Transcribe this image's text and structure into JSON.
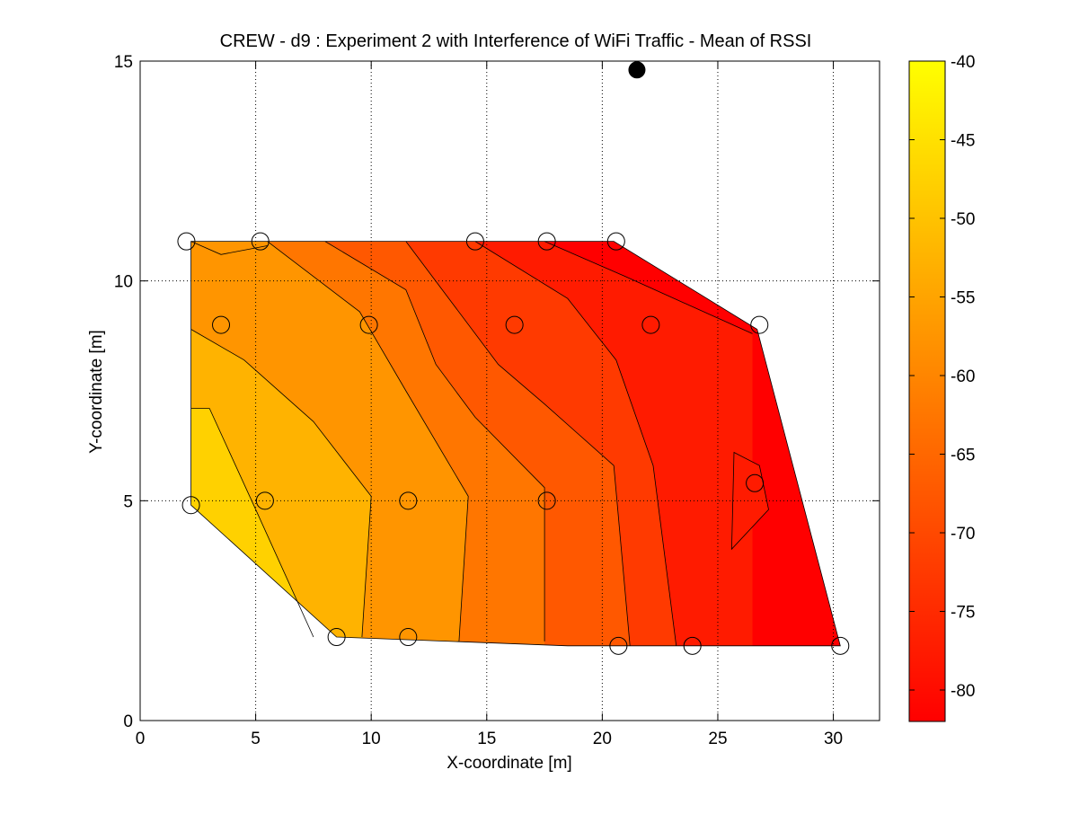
{
  "chart_data": {
    "type": "heatmap",
    "subtype": "filled-contour",
    "title": "CREW - d9 : Experiment 2 with Interference of WiFi Traffic - Mean of RSSI",
    "xlabel": "X-coordinate [m]",
    "ylabel": "Y-coordinate [m]",
    "xlim": [
      0,
      32
    ],
    "ylim": [
      0,
      15
    ],
    "xticks": [
      "0",
      "5",
      "10",
      "15",
      "20",
      "25",
      "30"
    ],
    "yticks": [
      "0",
      "5",
      "10",
      "15"
    ],
    "grid": true,
    "colormap": "autumn-reversed",
    "colors": {
      "low": "#ff0000",
      "high": "#ffff00"
    },
    "colorbar": {
      "range": [
        -82,
        -40
      ],
      "ticks": [
        "-40",
        "-45",
        "-50",
        "-55",
        "-60",
        "-65",
        "-70",
        "-75",
        "-80"
      ]
    },
    "region": [
      [
        2.2,
        10.9
      ],
      [
        20.5,
        10.9
      ],
      [
        26.7,
        8.9
      ],
      [
        30.3,
        1.7
      ],
      [
        18.5,
        1.7
      ],
      [
        8.5,
        1.9
      ],
      [
        2.2,
        4.9
      ]
    ],
    "contour_levels": [
      {
        "level": -80,
        "polyline": [
          [
            17.5,
            10.9
          ],
          [
            21,
            10.1
          ],
          [
            26.5,
            8.8
          ]
        ]
      },
      {
        "level": -75,
        "polyline": [
          [
            14.5,
            10.9
          ],
          [
            18.5,
            9.6
          ],
          [
            20.6,
            8.2
          ],
          [
            22.2,
            5.8
          ],
          [
            23.2,
            1.7
          ]
        ]
      },
      {
        "level": -70,
        "polyline": [
          [
            11.5,
            10.9
          ],
          [
            13.5,
            9.5
          ],
          [
            15.5,
            8.1
          ],
          [
            17.5,
            7.2
          ],
          [
            20.5,
            5.8
          ],
          [
            21.2,
            1.7
          ]
        ]
      },
      {
        "level": -65,
        "polyline": [
          [
            8,
            10.9
          ],
          [
            11.5,
            9.8
          ],
          [
            12.8,
            8.1
          ],
          [
            14.5,
            6.9
          ],
          [
            17.5,
            5.3
          ],
          [
            17.5,
            1.8
          ]
        ]
      },
      {
        "level": -60,
        "polyline": [
          [
            5.5,
            10.9
          ],
          [
            9.5,
            9.3
          ],
          [
            11.5,
            7.5
          ],
          [
            14.2,
            5.1
          ],
          [
            13.8,
            1.8
          ]
        ]
      },
      {
        "level": -55,
        "polyline": [
          [
            2.2,
            10.9
          ],
          [
            3.5,
            10.6
          ],
          [
            5.5,
            10.8
          ]
        ]
      },
      {
        "level": -55,
        "polyline": [
          [
            2.2,
            8.9
          ],
          [
            4.5,
            8.2
          ],
          [
            7.5,
            6.8
          ],
          [
            10,
            5.1
          ],
          [
            9.6,
            1.9
          ]
        ]
      },
      {
        "level": -50,
        "polyline": [
          [
            2.2,
            7.1
          ],
          [
            3,
            7.1
          ],
          [
            5,
            4.8
          ],
          [
            7.5,
            1.9
          ]
        ]
      }
    ],
    "local_region": {
      "level": -75,
      "polygon": [
        [
          25.7,
          6.1
        ],
        [
          26.8,
          5.8
        ],
        [
          27.2,
          4.8
        ],
        [
          25.6,
          3.9
        ]
      ]
    },
    "series": [
      {
        "name": "measurement-points",
        "marker": "open-circle",
        "x": [
          2.0,
          5.2,
          14.5,
          17.6,
          20.6,
          3.5,
          9.9,
          16.2,
          22.1,
          26.8,
          2.2,
          5.4,
          11.6,
          17.6,
          26.6,
          8.5,
          11.6,
          20.7,
          23.9,
          30.3
        ],
        "y": [
          10.9,
          10.9,
          10.9,
          10.9,
          10.9,
          9.0,
          9.0,
          9.0,
          9.0,
          9.0,
          4.9,
          5.0,
          5.0,
          5.0,
          5.4,
          1.9,
          1.9,
          1.7,
          1.7,
          1.7
        ]
      },
      {
        "name": "interferer",
        "marker": "filled-circle",
        "x": [
          21.5
        ],
        "y": [
          14.8
        ]
      }
    ]
  }
}
